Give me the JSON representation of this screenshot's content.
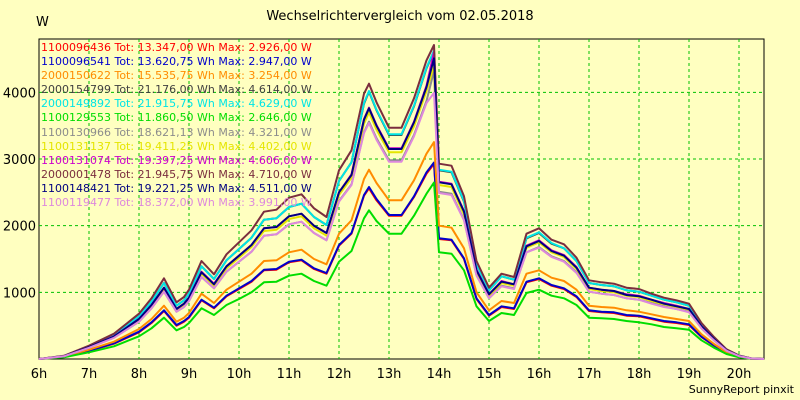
{
  "chart_data": {
    "type": "line",
    "title": "Wechselrichtervergleich vom 02.05.2018",
    "ylabel": "W",
    "xlabel": "",
    "footer": "SunnyReport pinxit",
    "xlim": [
      6,
      20.5
    ],
    "ylim": [
      0,
      4800
    ],
    "xticks": [
      {
        "value": 6,
        "label": "6h"
      },
      {
        "value": 7,
        "label": "7h"
      },
      {
        "value": 8,
        "label": "8h"
      },
      {
        "value": 9,
        "label": "9h"
      },
      {
        "value": 10,
        "label": "10h"
      },
      {
        "value": 11,
        "label": "11h"
      },
      {
        "value": 12,
        "label": "12h"
      },
      {
        "value": 13,
        "label": "13h"
      },
      {
        "value": 14,
        "label": "14h"
      },
      {
        "value": 15,
        "label": "15h"
      },
      {
        "value": 16,
        "label": "16h"
      },
      {
        "value": 17,
        "label": "17h"
      },
      {
        "value": 18,
        "label": "18h"
      },
      {
        "value": 19,
        "label": "19h"
      },
      {
        "value": 20,
        "label": "20h"
      }
    ],
    "yticks": [
      {
        "value": 1000,
        "label": "1000"
      },
      {
        "value": 2000,
        "label": "2000"
      },
      {
        "value": 3000,
        "label": "3000"
      },
      {
        "value": 4000,
        "label": "4000"
      }
    ],
    "grid": true,
    "legend_position": "top-left",
    "x": [
      6,
      6.5,
      7,
      7.5,
      8,
      8.25,
      8.5,
      8.75,
      8.9,
      9,
      9.25,
      9.5,
      9.75,
      10,
      10.25,
      10.5,
      10.75,
      11,
      11.25,
      11.5,
      11.75,
      12,
      12.25,
      12.5,
      12.6,
      12.75,
      13,
      13.25,
      13.5,
      13.75,
      13.9,
      14,
      14.25,
      14.5,
      14.75,
      15,
      15.25,
      15.5,
      15.75,
      16,
      16.25,
      16.5,
      16.75,
      17,
      17.25,
      17.5,
      17.75,
      18,
      18.25,
      18.5,
      18.75,
      19,
      19.25,
      19.5,
      19.75,
      20,
      20.25,
      20.5
    ],
    "series": [
      {
        "name": "1100096436",
        "total": "13.347,00",
        "max": "2.926,00",
        "color": "#ff0000",
        "values": [
          0,
          30,
          120,
          230,
          400,
          540,
          720,
          500,
          560,
          620,
          880,
          760,
          940,
          1050,
          1160,
          1330,
          1340,
          1450,
          1480,
          1350,
          1280,
          1700,
          1880,
          2450,
          2560,
          2380,
          2150,
          2150,
          2430,
          2780,
          2926,
          1800,
          1780,
          1500,
          900,
          650,
          780,
          750,
          1150,
          1200,
          1100,
          1050,
          930,
          720,
          700,
          690,
          650,
          640,
          600,
          560,
          540,
          510,
          330,
          200,
          90,
          30,
          5,
          0
        ]
      },
      {
        "name": "1100096541",
        "total": "13.620,75",
        "max": "2.947,00",
        "color": "#0000cc",
        "values": [
          0,
          30,
          125,
          235,
          410,
          550,
          730,
          510,
          570,
          630,
          890,
          770,
          950,
          1060,
          1170,
          1340,
          1350,
          1460,
          1490,
          1360,
          1290,
          1710,
          1890,
          2460,
          2580,
          2400,
          2160,
          2160,
          2440,
          2800,
          2947,
          1810,
          1790,
          1510,
          910,
          660,
          790,
          760,
          1160,
          1210,
          1110,
          1060,
          940,
          730,
          710,
          700,
          660,
          650,
          610,
          570,
          550,
          520,
          335,
          205,
          92,
          32,
          5,
          0
        ]
      },
      {
        "name": "2000150622",
        "total": "15.535,75",
        "max": "3.254,00",
        "color": "#ff8c00",
        "values": [
          0,
          35,
          140,
          260,
          450,
          600,
          800,
          560,
          620,
          690,
          980,
          840,
          1040,
          1160,
          1280,
          1470,
          1480,
          1600,
          1640,
          1500,
          1420,
          1880,
          2080,
          2700,
          2840,
          2640,
          2380,
          2380,
          2680,
          3080,
          3254,
          2000,
          1970,
          1660,
          1000,
          730,
          870,
          840,
          1280,
          1330,
          1220,
          1170,
          1040,
          800,
          780,
          770,
          730,
          710,
          670,
          630,
          600,
          570,
          370,
          225,
          100,
          35,
          5,
          0
        ]
      },
      {
        "name": "2000154799",
        "total": "21.176,00",
        "max": "4.614,00",
        "color": "#404040",
        "values": [
          0,
          45,
          190,
          360,
          640,
          860,
          1140,
          800,
          880,
          980,
          1390,
          1200,
          1480,
          1650,
          1820,
          2090,
          2110,
          2280,
          2330,
          2130,
          2010,
          2670,
          2950,
          3830,
          4010,
          3730,
          3360,
          3360,
          3790,
          4360,
          4614,
          2830,
          2800,
          2360,
          1420,
          1030,
          1240,
          1190,
          1810,
          1890,
          1730,
          1660,
          1470,
          1140,
          1110,
          1090,
          1030,
          1010,
          950,
          890,
          850,
          800,
          520,
          320,
          140,
          50,
          8,
          0
        ]
      },
      {
        "name": "2000149892",
        "total": "21.915,75",
        "max": "4.629,00",
        "color": "#00e5e5",
        "values": [
          0,
          45,
          190,
          360,
          640,
          860,
          1140,
          800,
          880,
          980,
          1390,
          1200,
          1480,
          1650,
          1820,
          2090,
          2110,
          2280,
          2330,
          2130,
          2010,
          2670,
          2950,
          3840,
          4020,
          3740,
          3370,
          3370,
          3800,
          4370,
          4629,
          2840,
          2810,
          2370,
          1420,
          1030,
          1240,
          1190,
          1820,
          1900,
          1740,
          1660,
          1470,
          1140,
          1110,
          1090,
          1030,
          1010,
          950,
          890,
          850,
          800,
          520,
          320,
          140,
          50,
          8,
          0
        ]
      },
      {
        "name": "1100129553",
        "total": "11.860,50",
        "max": "2.646,00",
        "color": "#00dd00",
        "values": [
          0,
          25,
          100,
          190,
          340,
          460,
          620,
          430,
          480,
          540,
          760,
          660,
          810,
          900,
          1000,
          1150,
          1160,
          1250,
          1280,
          1170,
          1100,
          1460,
          1620,
          2110,
          2230,
          2070,
          1880,
          1880,
          2150,
          2480,
          2646,
          1600,
          1580,
          1330,
          790,
          570,
          690,
          660,
          990,
          1040,
          950,
          910,
          810,
          620,
          610,
          600,
          570,
          550,
          520,
          480,
          460,
          440,
          280,
          170,
          75,
          25,
          4,
          0
        ]
      },
      {
        "name": "1100130966",
        "total": "18.621,13",
        "max": "4.321,00",
        "color": "#8c8c8c",
        "values": [
          0,
          40,
          170,
          320,
          560,
          760,
          1010,
          710,
          780,
          870,
          1230,
          1060,
          1310,
          1460,
          1610,
          1850,
          1870,
          2020,
          2060,
          1890,
          1780,
          2370,
          2620,
          3400,
          3560,
          3310,
          2980,
          2980,
          3360,
          3870,
          4321,
          2510,
          2480,
          2090,
          1260,
          910,
          1100,
          1060,
          1600,
          1680,
          1540,
          1470,
          1300,
          1010,
          980,
          960,
          910,
          890,
          840,
          790,
          750,
          710,
          460,
          280,
          125,
          45,
          7,
          0
        ]
      },
      {
        "name": "1100131137",
        "total": "19.411,25",
        "max": "4.402,00",
        "color": "#e5e500",
        "values": [
          0,
          40,
          175,
          330,
          580,
          790,
          1050,
          740,
          810,
          900,
          1280,
          1100,
          1360,
          1520,
          1680,
          1920,
          1940,
          2100,
          2140,
          1960,
          1850,
          2460,
          2720,
          3530,
          3700,
          3440,
          3100,
          3100,
          3490,
          4020,
          4402,
          2610,
          2580,
          2170,
          1310,
          950,
          1140,
          1100,
          1670,
          1750,
          1600,
          1530,
          1350,
          1050,
          1020,
          1000,
          950,
          930,
          870,
          820,
          780,
          740,
          480,
          295,
          130,
          45,
          7,
          0
        ]
      },
      {
        "name": "1100131074",
        "total": "19.397,25",
        "max": "4.606,00",
        "color": "#cc00cc",
        "values": [
          0,
          42,
          180,
          340,
          600,
          810,
          1070,
          750,
          830,
          920,
          1310,
          1130,
          1390,
          1550,
          1710,
          1960,
          1980,
          2140,
          2180,
          2000,
          1890,
          2500,
          2770,
          3600,
          3770,
          3510,
          3160,
          3160,
          3560,
          4100,
          4606,
          2660,
          2630,
          2220,
          1340,
          970,
          1170,
          1120,
          1700,
          1780,
          1630,
          1560,
          1380,
          1070,
          1040,
          1020,
          970,
          950,
          890,
          840,
          800,
          750,
          490,
          300,
          130,
          47,
          7,
          0
        ]
      },
      {
        "name": "2000001478",
        "total": "21.945,75",
        "max": "4.710,00",
        "color": "#7b2e3e",
        "values": [
          0,
          48,
          200,
          380,
          680,
          910,
          1210,
          850,
          930,
          1040,
          1470,
          1270,
          1570,
          1750,
          1930,
          2210,
          2240,
          2420,
          2470,
          2260,
          2130,
          2830,
          3130,
          3980,
          4130,
          3850,
          3470,
          3470,
          3910,
          4480,
          4710,
          2930,
          2900,
          2440,
          1470,
          1070,
          1280,
          1230,
          1880,
          1960,
          1790,
          1720,
          1520,
          1180,
          1150,
          1130,
          1070,
          1050,
          980,
          920,
          880,
          830,
          540,
          330,
          145,
          52,
          8,
          0
        ]
      },
      {
        "name": "1100148421",
        "total": "19.221,25",
        "max": "4.511,00",
        "color": "#000080",
        "values": [
          0,
          42,
          178,
          338,
          600,
          810,
          1070,
          750,
          830,
          920,
          1300,
          1120,
          1390,
          1550,
          1710,
          1960,
          1980,
          2140,
          2180,
          2000,
          1890,
          2500,
          2760,
          3590,
          3760,
          3500,
          3150,
          3150,
          3550,
          4080,
          4511,
          2650,
          2620,
          2210,
          1330,
          970,
          1160,
          1120,
          1690,
          1770,
          1620,
          1550,
          1370,
          1070,
          1040,
          1020,
          960,
          940,
          890,
          830,
          790,
          750,
          490,
          300,
          130,
          47,
          7,
          0
        ]
      },
      {
        "name": "1100119477",
        "total": "18.372,00",
        "max": "3.991,00",
        "color": "#dd88dd",
        "values": [
          0,
          40,
          168,
          318,
          560,
          760,
          1010,
          710,
          780,
          870,
          1230,
          1060,
          1310,
          1460,
          1610,
          1850,
          1870,
          2020,
          2060,
          1890,
          1780,
          2360,
          2610,
          3390,
          3540,
          3290,
          2960,
          2960,
          3340,
          3840,
          3991,
          2490,
          2460,
          2080,
          1250,
          910,
          1090,
          1050,
          1600,
          1670,
          1530,
          1460,
          1290,
          1010,
          980,
          960,
          910,
          890,
          830,
          780,
          750,
          700,
          460,
          280,
          125,
          44,
          7,
          0
        ]
      }
    ]
  },
  "labels": {
    "tot": "Tot:",
    "max": "Max:",
    "wh": "Wh",
    "w": "W"
  }
}
